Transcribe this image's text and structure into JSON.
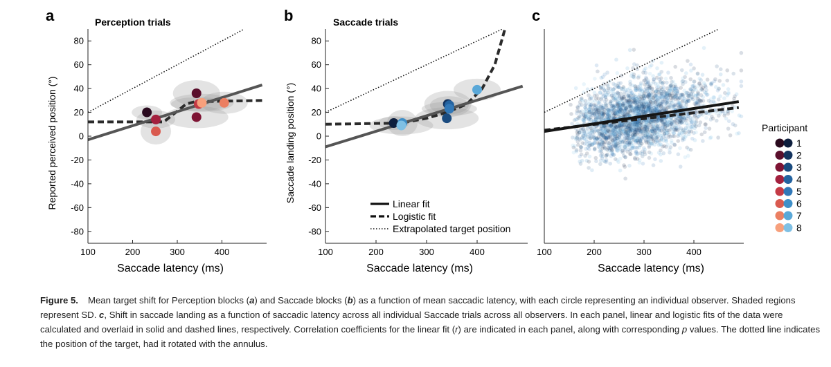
{
  "panels": [
    {
      "letter": "a",
      "title": "Perception trials",
      "ylabel": "Reported perceived position (°)",
      "xlabel": "Saccade latency (ms)"
    },
    {
      "letter": "b",
      "title": "Saccade trials",
      "ylabel": "Saccade landing position (°)",
      "xlabel": "Saccade latency (ms)"
    },
    {
      "letter": "c",
      "title": "",
      "ylabel": "",
      "xlabel": "Saccade latency (ms)"
    }
  ],
  "legend_lines": [
    {
      "label": "Linear fit",
      "style": "solid"
    },
    {
      "label": "Logistic fit",
      "style": "dashed"
    },
    {
      "label": "Extrapolated target position",
      "style": "dotted"
    }
  ],
  "participant_legend": {
    "title": "Participant",
    "items": [
      {
        "label": "1",
        "red": "#2a0a1e",
        "blue": "#0d1e3d"
      },
      {
        "label": "2",
        "red": "#5a0f2c",
        "blue": "#14335e"
      },
      {
        "label": "3",
        "red": "#7e1434",
        "blue": "#1a4b7f"
      },
      {
        "label": "4",
        "red": "#a3203e",
        "blue": "#2463a0"
      },
      {
        "label": "5",
        "red": "#c43a45",
        "blue": "#3178b8"
      },
      {
        "label": "6",
        "red": "#d95a4f",
        "blue": "#3e8fc8"
      },
      {
        "label": "7",
        "red": "#eb7f62",
        "blue": "#5aa8d8"
      },
      {
        "label": "8",
        "red": "#f7a07c",
        "blue": "#7fc0e4"
      }
    ]
  },
  "chart_data": [
    {
      "type": "scatter",
      "panel": "a",
      "x_range": [
        100,
        500
      ],
      "y_range": [
        -90,
        90
      ],
      "xticks": [
        100,
        200,
        300,
        400
      ],
      "yticks": [
        80,
        60,
        40,
        20,
        0,
        -20,
        -40,
        -60,
        -80
      ],
      "points": [
        {
          "participant": 1,
          "x": 232,
          "y": 20
        },
        {
          "participant": 2,
          "x": 343,
          "y": 36
        },
        {
          "participant": 3,
          "x": 343,
          "y": 16
        },
        {
          "participant": 4,
          "x": 252,
          "y": 14
        },
        {
          "participant": 5,
          "x": 348,
          "y": 27
        },
        {
          "participant": 6,
          "x": 252,
          "y": 4
        },
        {
          "participant": 7,
          "x": 405,
          "y": 28
        },
        {
          "participant": 8,
          "x": 355,
          "y": 28
        }
      ],
      "linear_fit": [
        [
          100,
          -3
        ],
        [
          490,
          43
        ]
      ],
      "logistic_fit": [
        [
          100,
          12
        ],
        [
          270,
          12
        ],
        [
          300,
          21
        ],
        [
          320,
          27
        ],
        [
          340,
          29
        ],
        [
          490,
          30
        ]
      ],
      "target_line": [
        [
          100,
          20
        ],
        [
          450,
          90
        ]
      ]
    },
    {
      "type": "scatter",
      "panel": "b",
      "x_range": [
        100,
        500
      ],
      "y_range": [
        -90,
        90
      ],
      "xticks": [
        100,
        200,
        300,
        400
      ],
      "yticks": [
        80,
        60,
        40,
        20,
        0,
        -20,
        -40,
        -60,
        -80
      ],
      "points": [
        {
          "participant": 1,
          "x": 235,
          "y": 11
        },
        {
          "participant": 2,
          "x": 342,
          "y": 27
        },
        {
          "participant": 3,
          "x": 340,
          "y": 15
        },
        {
          "participant": 4,
          "x": 345,
          "y": 26
        },
        {
          "participant": 5,
          "x": 345,
          "y": 23
        },
        {
          "participant": 6,
          "x": 252,
          "y": 11
        },
        {
          "participant": 7,
          "x": 400,
          "y": 39
        },
        {
          "participant": 8,
          "x": 250,
          "y": 9
        }
      ],
      "linear_fit": [
        [
          100,
          -9
        ],
        [
          490,
          42
        ]
      ],
      "logistic_fit": [
        [
          100,
          10
        ],
        [
          250,
          11
        ],
        [
          300,
          15
        ],
        [
          340,
          20
        ],
        [
          380,
          27
        ],
        [
          410,
          40
        ],
        [
          435,
          60
        ],
        [
          455,
          90
        ]
      ],
      "target_line": [
        [
          100,
          20
        ],
        [
          455,
          91
        ]
      ]
    },
    {
      "type": "scatter",
      "panel": "c",
      "x_range": [
        100,
        500
      ],
      "y_range": [
        -90,
        90
      ],
      "xticks": [
        100,
        200,
        300,
        400
      ],
      "yticks": [],
      "linear_fit": [
        [
          100,
          4
        ],
        [
          490,
          29
        ]
      ],
      "logistic_fit": [
        [
          100,
          5
        ],
        [
          490,
          24
        ]
      ],
      "target_line": [
        [
          100,
          20
        ],
        [
          450,
          90
        ]
      ]
    }
  ],
  "caption": {
    "label": "Figure 5.",
    "part1": "Mean target shift for Perception blocks (",
    "a": "a",
    "part2": ") and Saccade blocks (",
    "b": "b",
    "part3": ") as a function of mean saccadic latency, with each circle representing an individual observer. Shaded regions represent SD. ",
    "c": "c",
    "part4": ", Shift in saccade landing as a function of saccadic latency across all individual Saccade trials across all observers. In each panel, linear and logistic fits of the data were calculated and overlaid in solid and dashed lines, respectively. Correlation coefficients for the linear fit (",
    "r": "r",
    "part5": ") are indicated in each panel, along with corresponding ",
    "p": "p",
    "part6": " values. The dotted line indicates the position of the target, had it rotated with the annulus."
  }
}
